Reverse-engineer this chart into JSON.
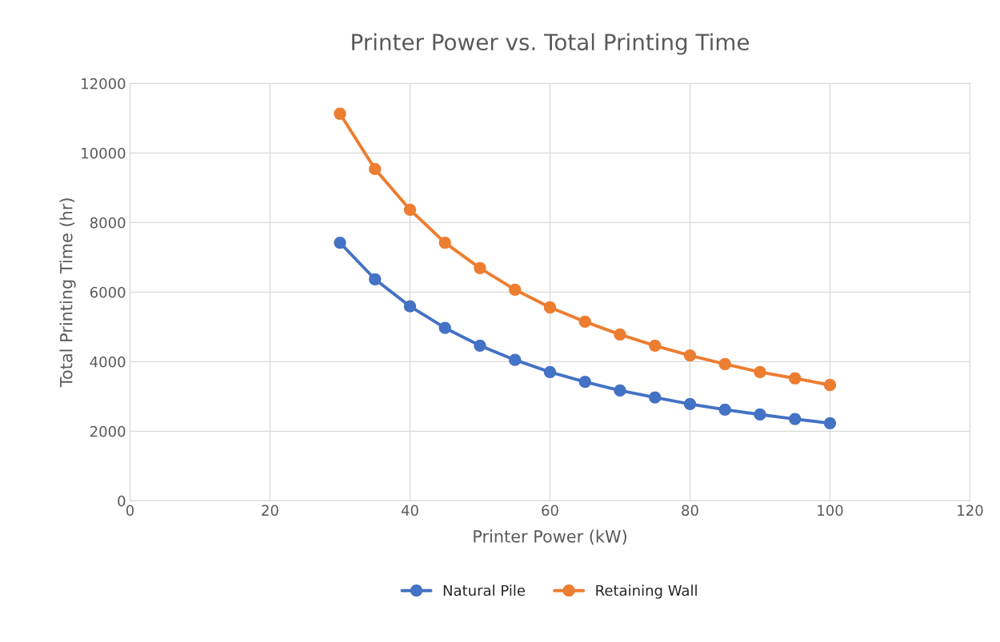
{
  "chart_data": {
    "type": "line",
    "title": "Printer Power vs. Total Printing Time",
    "xlabel": "Printer Power (kW)",
    "ylabel": "Total Printing Time (hr)",
    "x": [
      30,
      35,
      40,
      45,
      50,
      55,
      60,
      65,
      70,
      75,
      80,
      85,
      90,
      95,
      100
    ],
    "series": [
      {
        "name": "Natural Pile",
        "color": "#4472c4",
        "values": [
          7420,
          6370,
          5590,
          4970,
          4460,
          4050,
          3700,
          3420,
          3170,
          2970,
          2780,
          2620,
          2480,
          2350,
          2230
        ]
      },
      {
        "name": "Retaining Wall",
        "color": "#ed7d31",
        "values": [
          11130,
          9540,
          8370,
          7420,
          6690,
          6070,
          5560,
          5150,
          4780,
          4460,
          4180,
          3930,
          3700,
          3520,
          3330
        ]
      }
    ],
    "xlim": [
      0,
      120
    ],
    "xticks": [
      0,
      20,
      40,
      60,
      80,
      100,
      120
    ],
    "ylim": [
      0,
      12000
    ],
    "yticks": [
      0,
      2000,
      4000,
      6000,
      8000,
      10000,
      12000
    ],
    "grid": true,
    "legend": "bottom",
    "marker": "circle",
    "line_style": "solid"
  }
}
